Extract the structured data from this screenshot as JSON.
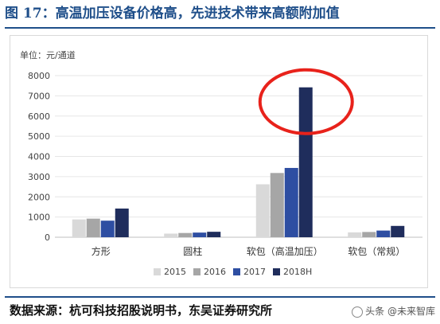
{
  "title": "图 17：高温加压设备价格高，先进技术带来高额附加值",
  "source": "数据来源：杭可科技招股说明书，东吴证券研究所",
  "watermark": "头条 @未来智库",
  "chart_data": {
    "type": "bar",
    "unit_label": "单位：元/通道",
    "categories": [
      "方形",
      "圆柱",
      "软包（高温加压）",
      "软包（常规）"
    ],
    "series": [
      {
        "name": "2015",
        "color": "#d9d9d9",
        "values": [
          880,
          180,
          2620,
          240
        ]
      },
      {
        "name": "2016",
        "color": "#a6a6a6",
        "values": [
          920,
          210,
          3180,
          260
        ]
      },
      {
        "name": "2017",
        "color": "#2e4ea2",
        "values": [
          820,
          230,
          3430,
          330
        ]
      },
      {
        "name": "2018H",
        "color": "#1f2d5c",
        "values": [
          1420,
          270,
          7420,
          560
        ]
      }
    ],
    "ylim": [
      0,
      8000
    ],
    "yticks": [
      0,
      1000,
      2000,
      3000,
      4000,
      5000,
      6000,
      7000,
      8000
    ],
    "grid": true,
    "legend": "bottom",
    "annotation": "red-ellipse-highlight-2018H-soft-pack-high-temp"
  }
}
